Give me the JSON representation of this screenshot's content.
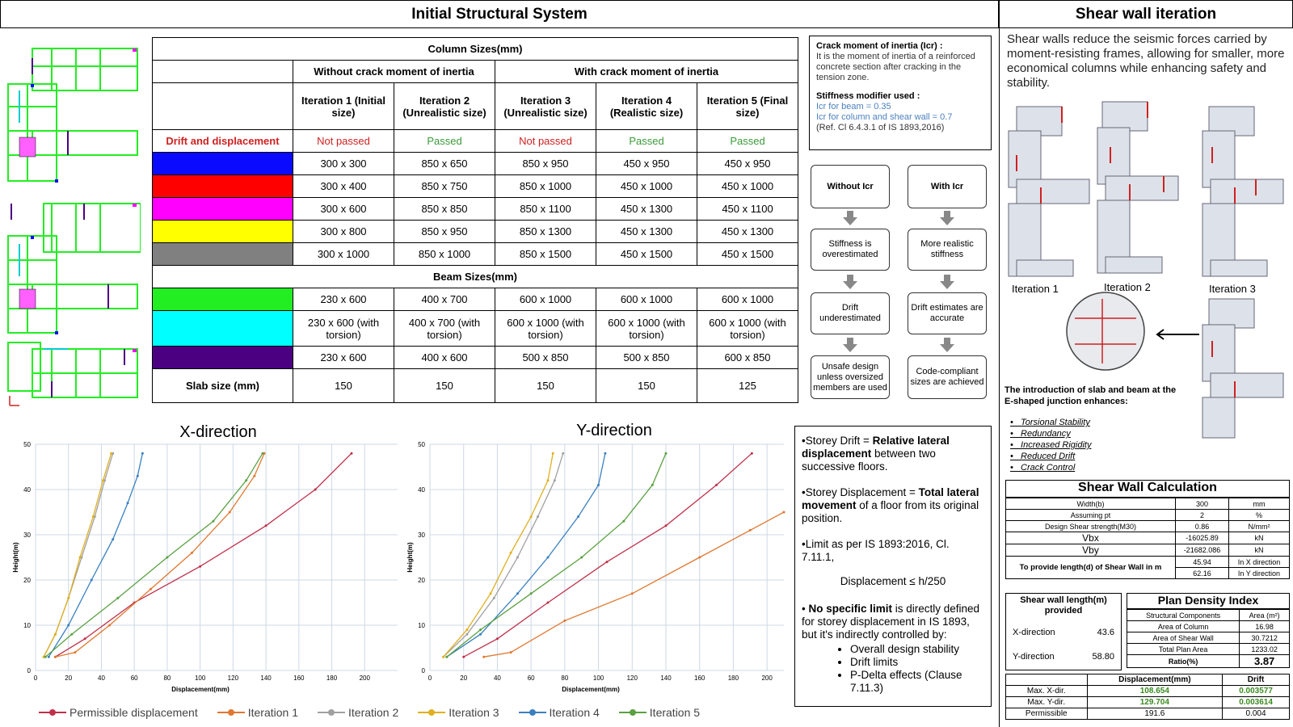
{
  "headers": {
    "left": "Initial Structural System",
    "right": "Shear wall iteration"
  },
  "column_table": {
    "title": "Column Sizes(mm)",
    "group_without": "Without crack moment of inertia",
    "group_with": "With crack moment of inertia",
    "iterations": [
      "Iteration 1 (Initial size)",
      "Iteration 2 (Unrealistic size)",
      "Iteration 3 (Unrealistic size)",
      "Iteration 4 (Realistic size)",
      "Iteration 5 (Final size)"
    ],
    "drift_label": "Drift and displacement",
    "drift_status": [
      "Not passed",
      "Passed",
      "Not passed",
      "Passed",
      "Passed"
    ],
    "column_colors": [
      "#0a0aff",
      "#ff0000",
      "#ff00ff",
      "#ffff00",
      "#808080"
    ],
    "column_rows": [
      [
        "300 x 300",
        "850 x 650",
        "850 x 950",
        "450 x 950",
        "450 x 950"
      ],
      [
        "300 x 400",
        "850 x 750",
        "850 x 1000",
        "450 x 1000",
        "450 x 1000"
      ],
      [
        "300 x 600",
        "850 x 850",
        "850 x 1100",
        "450 x 1300",
        "450 x 1100"
      ],
      [
        "300 x 800",
        "850 x 950",
        "850 x 1300",
        "450 x 1300",
        "450 x 1300"
      ],
      [
        "300 x 1000",
        "850 x 1000",
        "850 x 1500",
        "450 x 1500",
        "450 x 1500"
      ]
    ],
    "beam_title": "Beam Sizes(mm)",
    "beam_colors": [
      "#22ee22",
      "#00ffff",
      "#4b0082"
    ],
    "beam_rows": [
      [
        "230 x 600",
        "400 x 700",
        "600 x 1000",
        "600 x 1000",
        "600 x 1000"
      ],
      [
        "230 x 600 (with torsion)",
        "400 x 700 (with torsion)",
        "600 x 1000 (with torsion)",
        "600 x 1000 (with torsion)",
        "600 x 1000 (with torsion)"
      ],
      [
        "230 x 600",
        "400 x 600",
        "500 x 850",
        "500 x 850",
        "600 x 850"
      ]
    ],
    "slab_label": "Slab size (mm)",
    "slab_values": [
      "150",
      "150",
      "150",
      "150",
      "125"
    ]
  },
  "crack_box": {
    "title": "Crack moment of inertia (Icr) :",
    "desc": "It is the moment of inertia of a reinforced concrete section after cracking in the tension zone.",
    "modifier_title": "Stiffness modifier used :",
    "mod_beam": "Icr for beam = 0.35",
    "mod_col": "Icr for column and shear wall = 0.7",
    "ref": "(Ref. Cl 6.4.3.1 of IS 1893,2016)"
  },
  "flow": {
    "left": [
      "Without Icr",
      "Stiffness is overestimated",
      "Drift underestimated",
      "Unsafe design unless oversized members are used"
    ],
    "right": [
      "With Icr",
      "More realistic stiffness",
      "Drift estimates are accurate",
      "Code-compliant sizes are achieved"
    ]
  },
  "notes": {
    "drift_a": "•Storey Drift = ",
    "drift_b": "Relative lateral displacement",
    "drift_c": " between two successive floors.",
    "disp_a": "•Storey Displacement = ",
    "disp_b": "Total lateral movement",
    "disp_c": " of a floor from its original position.",
    "limit": "•Limit as per IS 1893:2016, Cl. 7.11.1,",
    "formula": "Displacement ≤ h/250",
    "nolimit_a": "• ",
    "nolimit_b": "No specific limit",
    "nolimit_c": " is directly defined for storey displacement in IS 1893, but it's indirectly controlled by:",
    "bullets": [
      "Overall design stability",
      "Drift limits",
      "P-Delta effects (Clause 7.11.3)"
    ]
  },
  "shear": {
    "intro": "Shear walls reduce the seismic forces carried by moment-resisting frames, allowing for smaller, more economical columns while enhancing safety and stability.",
    "iter_labels": [
      "Iteration 1",
      "Iteration 2",
      "Iteration 3"
    ],
    "junction_text": "The introduction of slab and beam at the E-shaped junction enhances:",
    "advantages": [
      "Torsional Stability",
      "Redundancy",
      "Increased Rigidity",
      "Reduced Drift",
      "Crack Control"
    ]
  },
  "calc": {
    "title": "Shear Wall Calculation",
    "rows": [
      [
        "Width(b)",
        "300",
        "mm"
      ],
      [
        "Assuming pt",
        "2",
        "%"
      ],
      [
        "Design Shear strength(M30)",
        "0.86",
        "N/mm²"
      ],
      [
        "Vbx",
        "-16025.89",
        "kN"
      ],
      [
        "Vby",
        "-21682.086",
        "kN"
      ]
    ],
    "length_label": "To provide length(d) of Shear Wall in m",
    "length_rows": [
      [
        "45.94",
        "In X direction"
      ],
      [
        "62.16",
        "In Y direction"
      ]
    ]
  },
  "provided": {
    "title": "Shear wall length(m) provided",
    "rows": [
      [
        "X-direction",
        "43.6"
      ],
      [
        "Y-direction",
        "58.80"
      ]
    ]
  },
  "density": {
    "title": "Plan Density Index",
    "headers": [
      "Structural Components",
      "Area (m²)"
    ],
    "rows": [
      [
        "Area of Column",
        "16.98"
      ],
      [
        "Area of Shear Wall",
        "30.7212"
      ],
      [
        "Total Plan Area",
        "1233.02"
      ]
    ],
    "ratio_label": "Ratio(%)",
    "ratio_value": "3.87"
  },
  "disp_table": {
    "headers": [
      "",
      "Displacement(mm)",
      "Drift"
    ],
    "rows": [
      [
        "Max. X-dir.",
        "108.654",
        "0.003577"
      ],
      [
        "Max. Y-dir.",
        "129.704",
        "0.003614"
      ],
      [
        "Permissible",
        "191.6",
        "0.004"
      ]
    ]
  },
  "chart_data": [
    {
      "type": "line",
      "title": "X-direction",
      "xlabel": "Displacement(mm)",
      "ylabel": "Height(m)",
      "xlim": [
        0,
        220
      ],
      "ylim": [
        0,
        50
      ],
      "xticks": [
        "0",
        "20",
        "40",
        "60",
        "80",
        "100",
        "120",
        "140",
        "160",
        "180",
        "200"
      ],
      "yticks": [
        "0",
        "10",
        "20",
        "30",
        "40",
        "50"
      ],
      "grid": true,
      "legend": "bottom",
      "series": [
        {
          "name": "Permissible displacement",
          "color": "#c0304a",
          "points": [
            [
              12,
              3
            ],
            [
              30,
              7
            ],
            [
              60,
              15
            ],
            [
              100,
              23
            ],
            [
              140,
              32
            ],
            [
              170,
              40
            ],
            [
              192,
              48
            ]
          ]
        },
        {
          "name": "Iteration 1",
          "color": "#e07830",
          "points": [
            [
              12,
              3
            ],
            [
              24,
              4
            ],
            [
              45,
              10
            ],
            [
              70,
              18
            ],
            [
              95,
              26
            ],
            [
              118,
              35
            ],
            [
              133,
              43
            ],
            [
              139,
              48
            ]
          ]
        },
        {
          "name": "Iteration 2",
          "color": "#a0a0a0",
          "points": [
            [
              5,
              3
            ],
            [
              12,
              8
            ],
            [
              20,
              16
            ],
            [
              28,
              25
            ],
            [
              36,
              34
            ],
            [
              42,
              42
            ],
            [
              47,
              48
            ]
          ]
        },
        {
          "name": "Iteration 3",
          "color": "#e0b020",
          "points": [
            [
              5,
              3
            ],
            [
              12,
              8
            ],
            [
              20,
              16
            ],
            [
              27,
              25
            ],
            [
              35,
              34
            ],
            [
              41,
              42
            ],
            [
              46,
              48
            ]
          ]
        },
        {
          "name": "Iteration 4",
          "color": "#3a80c0",
          "points": [
            [
              8,
              3
            ],
            [
              20,
              10
            ],
            [
              34,
              20
            ],
            [
              47,
              29
            ],
            [
              56,
              37
            ],
            [
              62,
              43
            ],
            [
              65,
              48
            ]
          ]
        },
        {
          "name": "Iteration 5",
          "color": "#5aa040",
          "points": [
            [
              6,
              3
            ],
            [
              22,
              8
            ],
            [
              50,
              16
            ],
            [
              80,
              25
            ],
            [
              108,
              33
            ],
            [
              128,
              42
            ],
            [
              138,
              48
            ]
          ]
        }
      ]
    },
    {
      "type": "line",
      "title": "Y-direction",
      "xlabel": "Displacement(mm)",
      "ylabel": "Height(m)",
      "xlim": [
        0,
        210
      ],
      "ylim": [
        0,
        50
      ],
      "xticks": [
        "0",
        "20",
        "40",
        "60",
        "80",
        "100",
        "120",
        "140",
        "160",
        "180",
        "200"
      ],
      "yticks": [
        "0",
        "10",
        "20",
        "30",
        "40",
        "50"
      ],
      "grid": true,
      "legend": "bottom",
      "series": [
        {
          "name": "Permissible displacement",
          "color": "#c0304a",
          "points": [
            [
              20,
              3
            ],
            [
              40,
              7
            ],
            [
              70,
              15
            ],
            [
              105,
              24
            ],
            [
              140,
              32
            ],
            [
              170,
              41
            ],
            [
              191,
              48
            ]
          ]
        },
        {
          "name": "Iteration 1",
          "color": "#e07830",
          "points": [
            [
              32,
              3
            ],
            [
              48,
              4
            ],
            [
              80,
              11
            ],
            [
              120,
              17
            ],
            [
              160,
              25
            ],
            [
              190,
              31
            ],
            [
              210,
              35
            ]
          ]
        },
        {
          "name": "Iteration 2",
          "color": "#a0a0a0",
          "points": [
            [
              8,
              3
            ],
            [
              22,
              8
            ],
            [
              38,
              16
            ],
            [
              52,
              25
            ],
            [
              64,
              34
            ],
            [
              74,
              42
            ],
            [
              79,
              48
            ]
          ]
        },
        {
          "name": "Iteration 3",
          "color": "#e0b020",
          "points": [
            [
              8,
              3
            ],
            [
              22,
              9
            ],
            [
              36,
              17
            ],
            [
              48,
              26
            ],
            [
              60,
              34
            ],
            [
              70,
              42
            ],
            [
              73,
              48
            ]
          ]
        },
        {
          "name": "Iteration 4",
          "color": "#3a80c0",
          "points": [
            [
              10,
              3
            ],
            [
              30,
              8
            ],
            [
              52,
              17
            ],
            [
              70,
              25
            ],
            [
              88,
              34
            ],
            [
              100,
              41
            ],
            [
              104,
              48
            ]
          ]
        },
        {
          "name": "Iteration 5",
          "color": "#5aa040",
          "points": [
            [
              10,
              3
            ],
            [
              30,
              9
            ],
            [
              60,
              17
            ],
            [
              90,
              25
            ],
            [
              115,
              33
            ],
            [
              132,
              41
            ],
            [
              140,
              48
            ]
          ]
        }
      ]
    }
  ]
}
